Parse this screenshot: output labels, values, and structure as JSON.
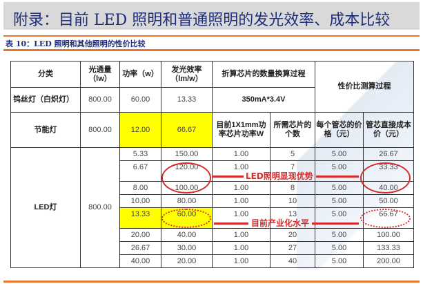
{
  "title": "附录：目前 LED 照明和普通照明的发光效率、成本比较",
  "subtitle": "表 10：LED 照明和其他照明的性价比较",
  "accent": "#e8762d",
  "headers": {
    "category": "分类",
    "flux": "光通量（lw）",
    "power": "功率（w）",
    "efficacy": "发光效率（lm/w）",
    "chip_calc": "折算芯片的数量换算过程",
    "cost_calc": "性价比测算过程",
    "chip_spec": "350mA*3.4V",
    "chip_power": "目前1X1mm功率芯片功率W",
    "chip_count": "所需芯片的个数",
    "chip_price": "每个管芯的价格（元）",
    "direct_cost": "管芯直接成本价（元）"
  },
  "incandescent": {
    "name": "钨丝灯（白炽灯）",
    "flux": "800.00",
    "power": "60.00",
    "efficacy": "13.33"
  },
  "cfl": {
    "name": "节能灯",
    "flux": "800.00",
    "power": "12.00",
    "efficacy": "66.67"
  },
  "led": {
    "name": "LED灯",
    "flux": "800.00",
    "rows": [
      [
        "5.33",
        "150.00",
        "1.00",
        "5",
        "5.00",
        "26.67"
      ],
      [
        "6.67",
        "120.00",
        "1.00",
        "7",
        "5.00",
        "33.33"
      ],
      [
        "8.00",
        "100.00",
        "1.00",
        "8",
        "5.00",
        "40.00"
      ],
      [
        "10.00",
        "80.00",
        "1.00",
        "10",
        "5.00",
        "50.00"
      ],
      [
        "13.33",
        "60.00",
        "1.00",
        "13",
        "5.00",
        "66.67"
      ],
      [
        "20.00",
        "40.00",
        "1.00",
        "20",
        "5.00",
        "100.00"
      ],
      [
        "26.67",
        "30.00",
        "1.00",
        "27",
        "5.00",
        "133.33"
      ],
      [
        "40.00",
        "20.00",
        "1.00",
        "40",
        "5.00",
        "200.00"
      ]
    ]
  },
  "annotations": {
    "advantage": "LED照明显现优势",
    "current": "目前产业化水平"
  },
  "highlight_color": "#ffff00"
}
